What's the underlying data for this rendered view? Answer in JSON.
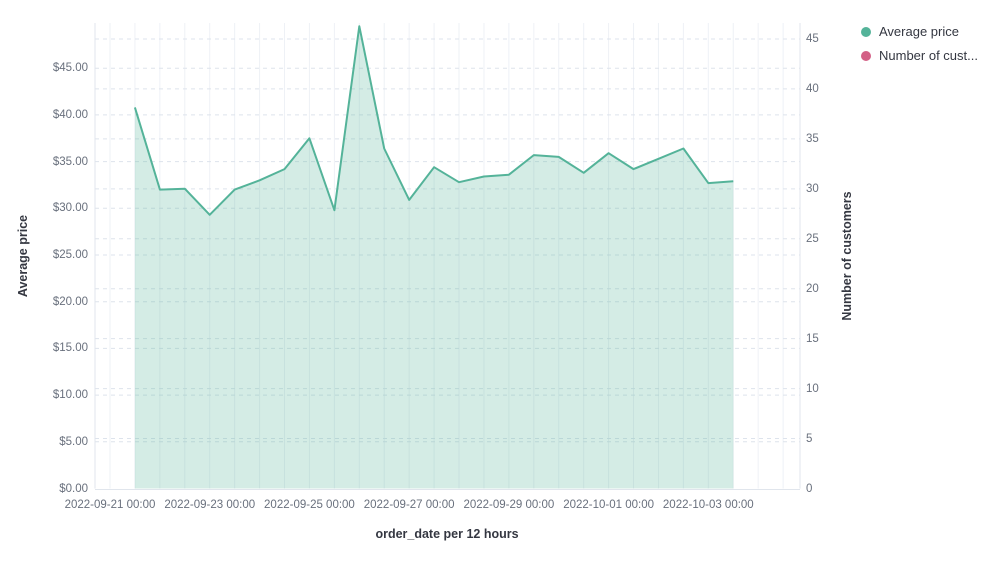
{
  "chart_data": {
    "type": "area",
    "title": "",
    "xlabel": "order_date per 12 hours",
    "x_unit": "12 hours",
    "x": [
      "2022-09-21 12:00",
      "2022-09-22 00:00",
      "2022-09-22 12:00",
      "2022-09-23 00:00",
      "2022-09-23 12:00",
      "2022-09-24 00:00",
      "2022-09-24 12:00",
      "2022-09-25 00:00",
      "2022-09-25 12:00",
      "2022-09-26 00:00",
      "2022-09-26 12:00",
      "2022-09-27 00:00",
      "2022-09-27 12:00",
      "2022-09-28 00:00",
      "2022-09-28 12:00",
      "2022-09-29 00:00",
      "2022-09-29 12:00",
      "2022-09-30 00:00",
      "2022-09-30 12:00",
      "2022-10-01 00:00",
      "2022-10-01 12:00",
      "2022-10-02 00:00",
      "2022-10-02 12:00",
      "2022-10-03 00:00",
      "2022-10-03 12:00"
    ],
    "series": [
      {
        "name": "Average price",
        "axis": "left",
        "color": "#54b399",
        "fill_opacity": 0.25,
        "values": [
          40.8,
          32.0,
          32.1,
          29.3,
          32.0,
          33.0,
          34.2,
          37.5,
          29.8,
          49.5,
          36.4,
          30.9,
          34.4,
          32.8,
          33.4,
          33.6,
          35.7,
          35.5,
          33.8,
          35.9,
          34.2,
          35.3,
          36.4,
          32.7,
          32.9
        ]
      },
      {
        "name": "Number of customers",
        "axis": "right",
        "color": "#d36086",
        "values": [],
        "note": "legend entry visible, series not visible in plot area"
      }
    ],
    "left_axis": {
      "title": "Average price",
      "tick_labels": [
        "$0.00",
        "$5.00",
        "$10.00",
        "$15.00",
        "$20.00",
        "$25.00",
        "$30.00",
        "$35.00",
        "$40.00",
        "$45.00"
      ],
      "tick_step": 5,
      "range_visible": [
        0,
        49.84
      ]
    },
    "right_axis": {
      "title": "Number of customers",
      "tick_labels": [
        "0",
        "5",
        "10",
        "15",
        "20",
        "25",
        "30",
        "35",
        "40",
        "45"
      ],
      "tick_step": 5,
      "range_visible": [
        0,
        46.6
      ]
    },
    "x_axis": {
      "tick_labels": [
        "2022-09-21 00:00",
        "2022-09-23 00:00",
        "2022-09-25 00:00",
        "2022-09-27 00:00",
        "2022-09-29 00:00",
        "2022-10-01 00:00",
        "2022-10-03 00:00"
      ]
    },
    "grid": {
      "vertical": "solid",
      "horizontal": "dashed",
      "horizontal_note": "dashed lines drawn for both left and right axis ticks"
    },
    "legend": {
      "position": "top-right",
      "items": [
        {
          "label": "Average price",
          "color": "#54b399"
        },
        {
          "label": "Number of cust...",
          "color": "#d36086"
        }
      ]
    },
    "colors": {
      "line_green": "#54b399",
      "fill_green": "rgba(84,179,153,0.25)",
      "pink": "#d36086",
      "tick_text": "#69707d",
      "title_text": "#343741",
      "grid_vertical": "#eef1f6",
      "grid_dashed": "#dde3ec",
      "plot_border": "#e0e5ec"
    }
  }
}
